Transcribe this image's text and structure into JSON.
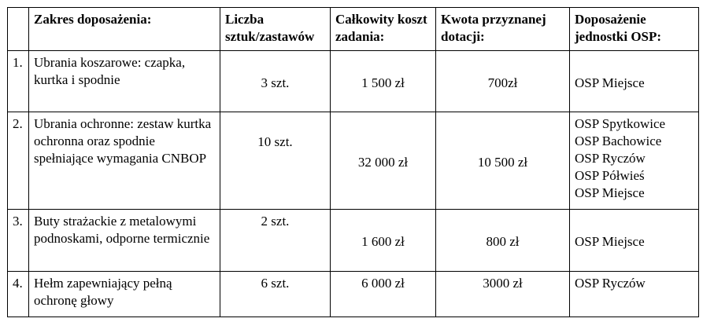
{
  "table": {
    "header": [
      "Zakres doposażenia:",
      "Liczba sztuk/zastawów",
      "Całkowity koszt zadania:",
      "Kwota przyznanej dotacji:",
      "Doposażenie jednostki OSP:"
    ],
    "rows": [
      {
        "number": "1.",
        "description": "Ubrania koszarowe: czapka, kurtka i spodnie",
        "quantity": "3 szt.",
        "total_cost": "1 500 zł",
        "grant": "700zł",
        "units": [
          "OSP Miejsce"
        ]
      },
      {
        "number": "2.",
        "description": "Ubrania ochronne: zestaw kurtka ochronna oraz spodnie spełniające wymagania CNBOP",
        "quantity": "10 szt.",
        "total_cost": "32 000 zł",
        "grant": "10 500 zł",
        "units": [
          "OSP Spytkowice",
          "OSP Bachowice",
          "OSP Ryczów",
          "OSP Półwieś",
          "OSP Miejsce"
        ]
      },
      {
        "number": "3.",
        "description": "Buty strażackie z metalowymi podnoskami, odporne termicznie",
        "quantity": "2 szt.",
        "total_cost": "1 600 zł",
        "grant": "800 zł",
        "units": [
          "OSP Miejsce"
        ]
      },
      {
        "number": "4.",
        "description": "Hełm zapewniający pełną ochronę głowy",
        "quantity": "6 szt.",
        "total_cost": "6 000 zł",
        "grant": "3000 zł",
        "units": [
          "OSP Ryczów"
        ]
      }
    ]
  }
}
